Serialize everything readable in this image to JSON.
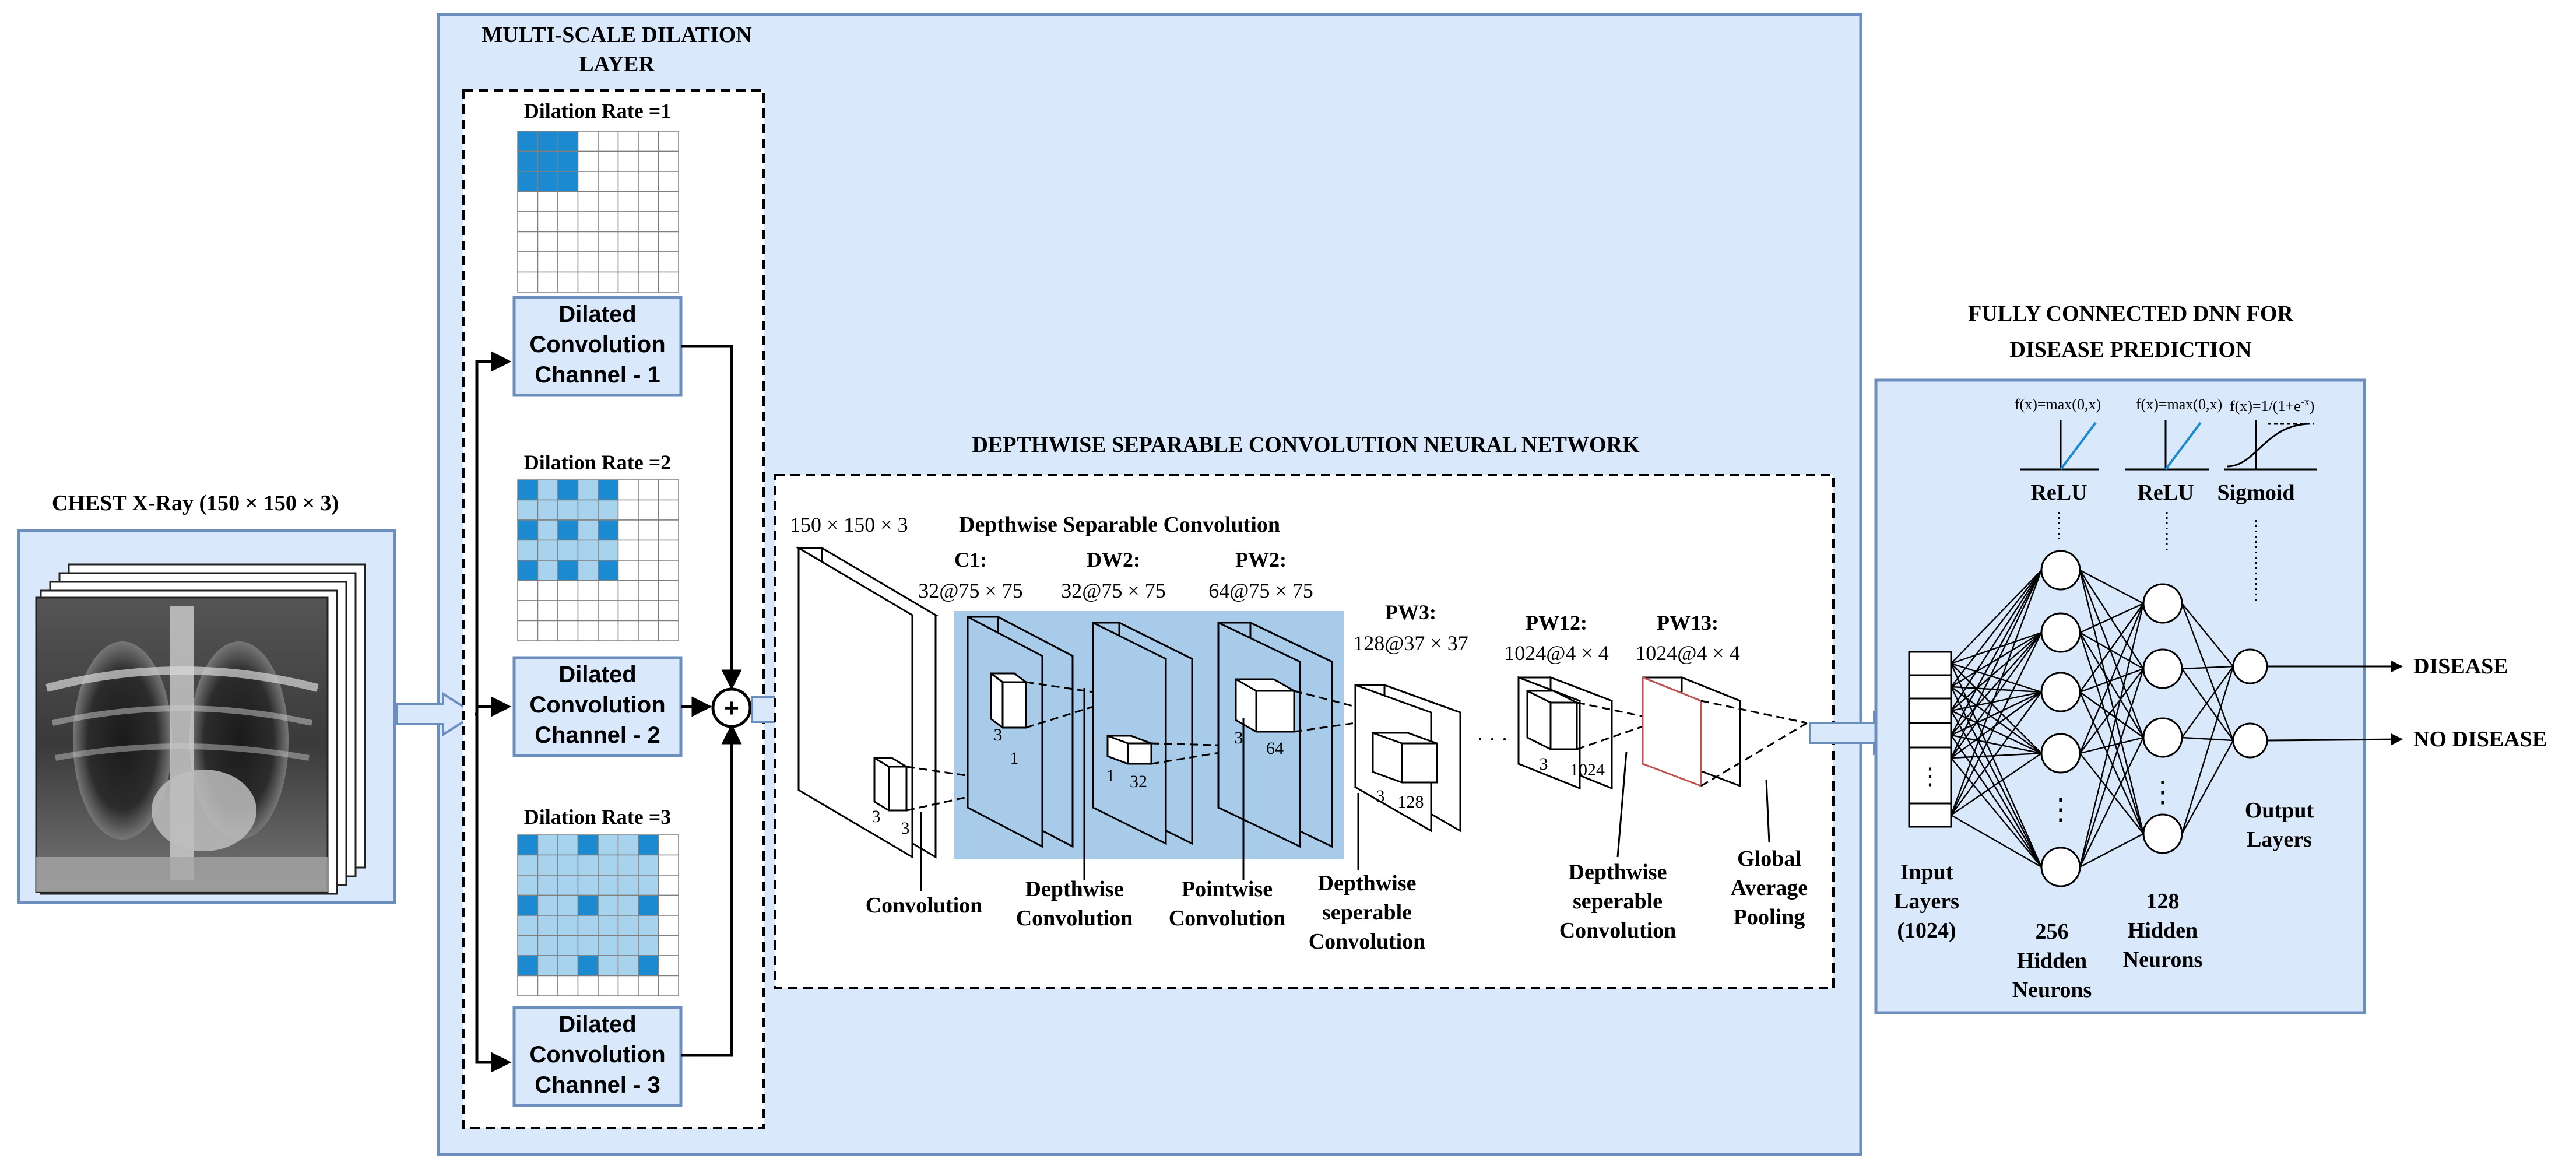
{
  "input": {
    "title": "CHEST X-Ray (150 × 150 × 3)"
  },
  "dilation_layer": {
    "title_line1": "MULTI-SCALE DILATION",
    "title_line2": "LAYER",
    "rate1": "Dilation Rate =1",
    "rate2": "Dilation Rate =2",
    "rate3": "Dilation Rate =3",
    "channel1": [
      "Dilated",
      "Convolution",
      "Channel - 1"
    ],
    "channel2": [
      "Dilated",
      "Convolution",
      "Channel - 2"
    ],
    "channel3": [
      "Dilated",
      "Convolution",
      "Channel - 3"
    ],
    "sum_symbol": "+"
  },
  "dsc": {
    "title": "DEPTHWISE SEPARABLE CONVOLUTION NEURAL NETWORK",
    "input_dims": "150 × 150 × 3",
    "block_label": "Depthwise Separable Convolution",
    "c1_name": "C1:",
    "c1_dims": "32@75 × 75",
    "dw2_name": "DW2:",
    "dw2_dims": "32@75 × 75",
    "pw2_name": "PW2:",
    "pw2_dims": "64@75 × 75",
    "pw3_name": "PW3:",
    "pw3_dims": "128@37 × 37",
    "pw12_name": "PW12:",
    "pw12_dims": "1024@4 × 4",
    "pw13_name": "PW13:",
    "pw13_dims": "1024@4 × 4",
    "ellipsis": "· · ·",
    "kernel": {
      "conv_a": "3",
      "conv_b": "3",
      "dw_a": "3",
      "dw_b": "1",
      "pw_a": "1",
      "pw_b": "32",
      "pw2_a": "3",
      "pw2_b": "64",
      "pw3_a": "3",
      "pw3_b": "128",
      "pw12_a": "3",
      "pw12_b": "1024"
    },
    "lbl_convolution": "Convolution",
    "lbl_depthwise": [
      "Depthwise",
      "Convolution"
    ],
    "lbl_pointwise": [
      "Pointwise",
      "Convolution"
    ],
    "lbl_dsep1": [
      "Depthwise",
      "seperable",
      "Convolution"
    ],
    "lbl_dsep2": [
      "Depthwise",
      "seperable",
      "Convolution"
    ],
    "lbl_gap": [
      "Global",
      "Average",
      "Pooling"
    ]
  },
  "dnn": {
    "title_line1": "FULLY CONNECTED DNN FOR",
    "title_line2": "DISEASE PREDICTION",
    "relu_formula": "f(x)=max(0,x)",
    "sigmoid_formula": "f(x)=1/(1+e",
    "sigmoid_exp": "-x",
    "sigmoid_close": ")",
    "act1": "ReLU",
    "act2": "ReLU",
    "act3": "Sigmoid",
    "input_label": [
      "Input",
      "Layers",
      "(1024)"
    ],
    "hidden1_label": [
      "256",
      "Hidden",
      "Neurons"
    ],
    "hidden2_label": [
      "128",
      "Hidden",
      "Neurons"
    ],
    "output_label": [
      "Output",
      "Layers"
    ],
    "out1": "DISEASE",
    "out2": "NO DISEASE",
    "dots": "⋮"
  },
  "colors": {
    "panel_fill": "#dae8fc",
    "panel_stroke": "#6c8ebf",
    "dark_blue": "#1b8ad0",
    "light_blue": "#a8d3ef",
    "dsc_highlight": "#a9cbea",
    "channel_fill": "#dae8fc",
    "pw13_edge": "#c0504d"
  }
}
